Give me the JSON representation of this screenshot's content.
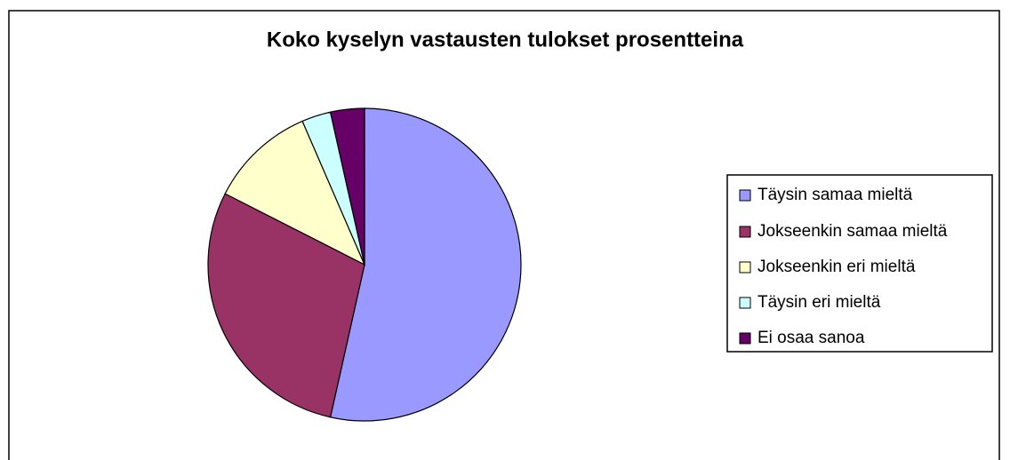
{
  "chart_data": {
    "type": "pie",
    "title": "Koko kyselyn vastausten tulokset prosentteina",
    "categories": [
      "Täysin samaa mieltä",
      "Jokseenkin samaa mieltä",
      "Jokseenkin eri mieltä",
      "Täysin eri mieltä",
      "Ei osaa sanoa"
    ],
    "values": [
      53.5,
      29,
      11,
      3,
      3.5
    ],
    "colors": [
      "#9999ff",
      "#993366",
      "#ffffcc",
      "#ccffff",
      "#660066"
    ],
    "legend": "right"
  }
}
